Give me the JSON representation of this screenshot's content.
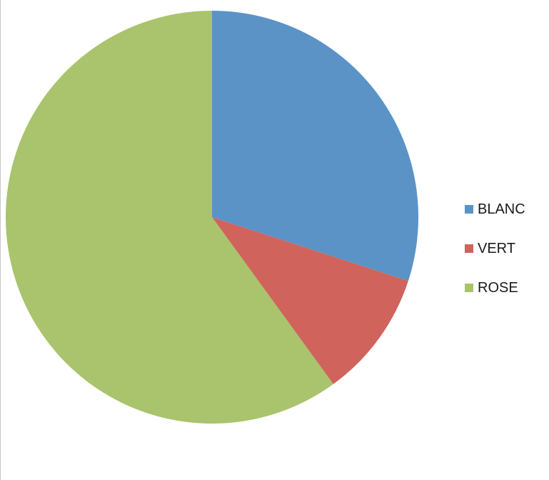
{
  "chart_data": {
    "type": "pie",
    "title": "",
    "start_angle_deg": 0,
    "direction": "clockwise",
    "legend_position": "right",
    "slices": [
      {
        "label": "BLANC",
        "value": 30,
        "color": "#5b93c7"
      },
      {
        "label": "VERT",
        "value": 10,
        "color": "#d0635c"
      },
      {
        "label": "ROSE",
        "value": 60,
        "color": "#a9c46c"
      }
    ]
  }
}
